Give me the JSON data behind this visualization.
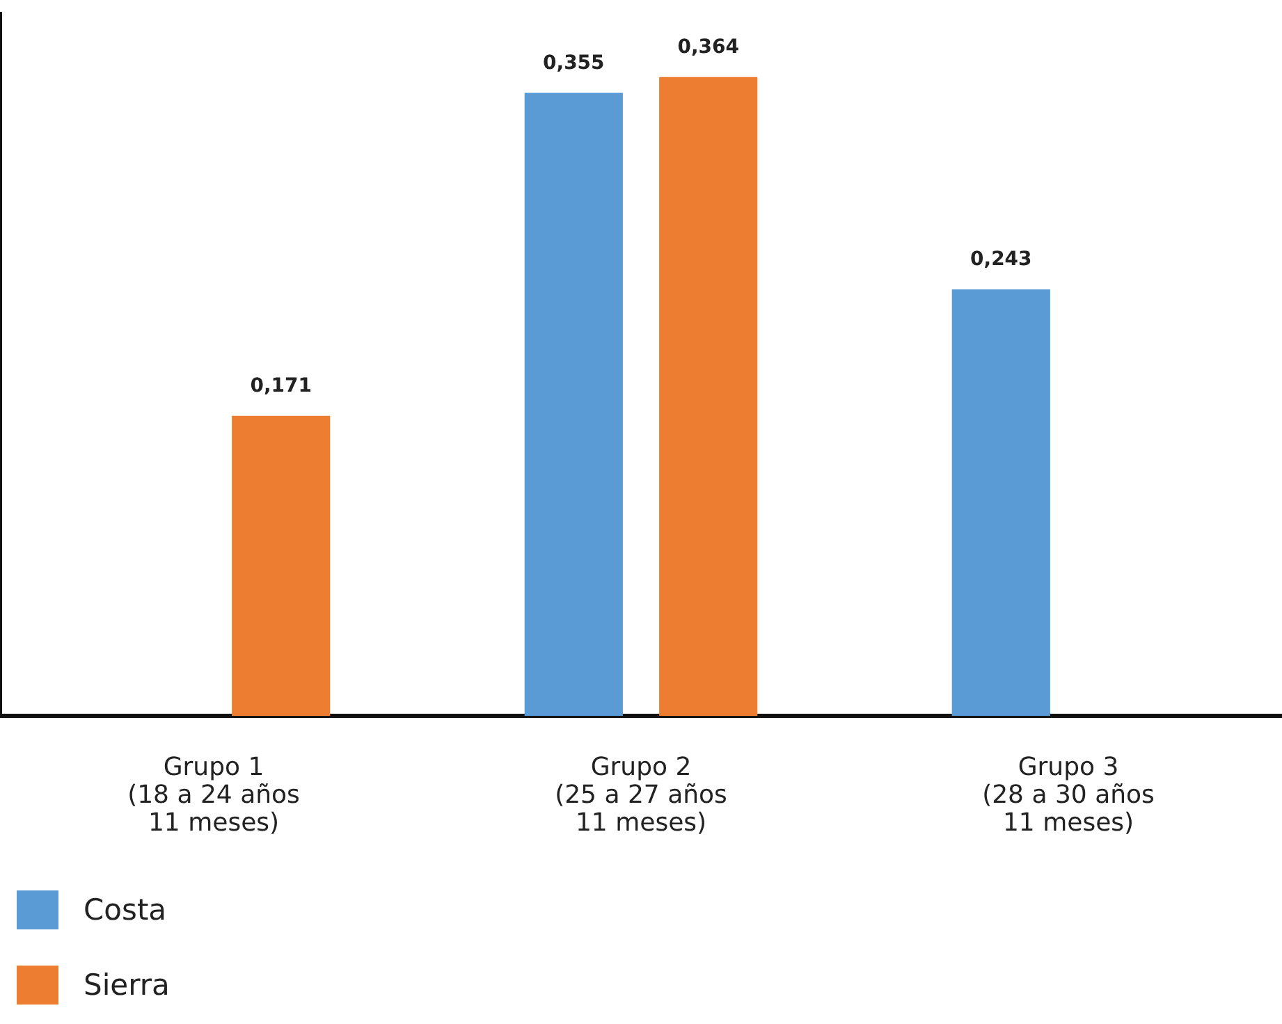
{
  "chart_data": {
    "type": "bar",
    "categories": [
      "Grupo 1\n(18 a 24 años\n11 meses)",
      "Grupo 2\n(25 a 27 años\n11 meses)",
      "Grupo 3\n(28 a 30 años\n11 meses)"
    ],
    "series": [
      {
        "name": "Costa",
        "color": "#5b9bd5",
        "values": [
          null,
          0.355,
          0.243
        ],
        "value_labels": [
          null,
          "0,355",
          "0,243"
        ]
      },
      {
        "name": "Sierra",
        "color": "#ed7d31",
        "values": [
          0.171,
          0.364,
          null
        ],
        "value_labels": [
          "0,171",
          "0,364",
          null
        ]
      }
    ],
    "grid": false,
    "legend": "bottom left",
    "tick_labels": "x"
  }
}
